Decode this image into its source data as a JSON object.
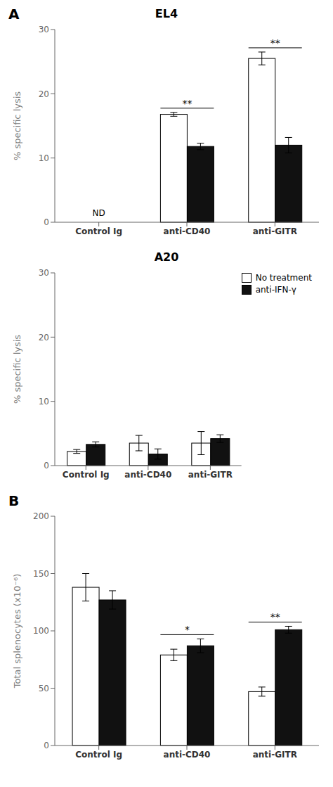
{
  "chart_data": [
    {
      "type": "bar",
      "title": "EL4",
      "panel_label": "A",
      "categories": [
        "Control Ig",
        "anti-CD40",
        "anti-GITR"
      ],
      "y_label": "% specific lysis",
      "ylim": [
        0,
        30
      ],
      "yticks": [
        0,
        10,
        20,
        30
      ],
      "grid": false,
      "series": [
        {
          "color": "#ffffff",
          "values": [
            null,
            16.8,
            25.5
          ],
          "errors": [
            null,
            0.3,
            1.0
          ]
        },
        {
          "color": "#111111",
          "values": [
            null,
            11.8,
            12.0
          ],
          "errors": [
            null,
            0.5,
            1.2
          ]
        }
      ],
      "annotations": [
        {
          "text": "ND",
          "category": "Control Ig"
        }
      ],
      "significance": [
        {
          "category": "anti-CD40",
          "text": "**"
        },
        {
          "category": "anti-GITR",
          "text": "**"
        }
      ]
    },
    {
      "type": "bar",
      "title": "A20",
      "categories": [
        "Control Ig",
        "anti-CD40",
        "anti-GITR"
      ],
      "y_label": "% specific lysis",
      "ylim": [
        0,
        30
      ],
      "yticks": [
        0,
        10,
        20,
        30
      ],
      "grid": false,
      "legend": "upper right",
      "series": [
        {
          "name": "No treatment",
          "color": "#ffffff",
          "values": [
            2.2,
            3.5,
            3.5
          ],
          "errors": [
            0.3,
            1.2,
            1.8
          ]
        },
        {
          "name": "anti-IFN-γ",
          "color": "#111111",
          "values": [
            3.3,
            1.8,
            4.2
          ],
          "errors": [
            0.4,
            0.8,
            0.6
          ]
        }
      ]
    },
    {
      "type": "bar",
      "panel_label": "B",
      "categories": [
        "Control Ig",
        "anti-CD40",
        "anti-GITR"
      ],
      "y_label": "Total splenocytes (x10⁻⁶)",
      "ylim": [
        0,
        200
      ],
      "yticks": [
        0,
        50,
        100,
        150,
        200
      ],
      "grid": false,
      "series": [
        {
          "color": "#ffffff",
          "values": [
            138,
            79,
            47
          ],
          "errors": [
            12,
            5,
            4
          ]
        },
        {
          "color": "#111111",
          "values": [
            127,
            87,
            101
          ],
          "errors": [
            8,
            6,
            3
          ]
        }
      ],
      "significance": [
        {
          "category": "anti-CD40",
          "text": "*"
        },
        {
          "category": "anti-GITR",
          "text": "**"
        }
      ]
    }
  ]
}
